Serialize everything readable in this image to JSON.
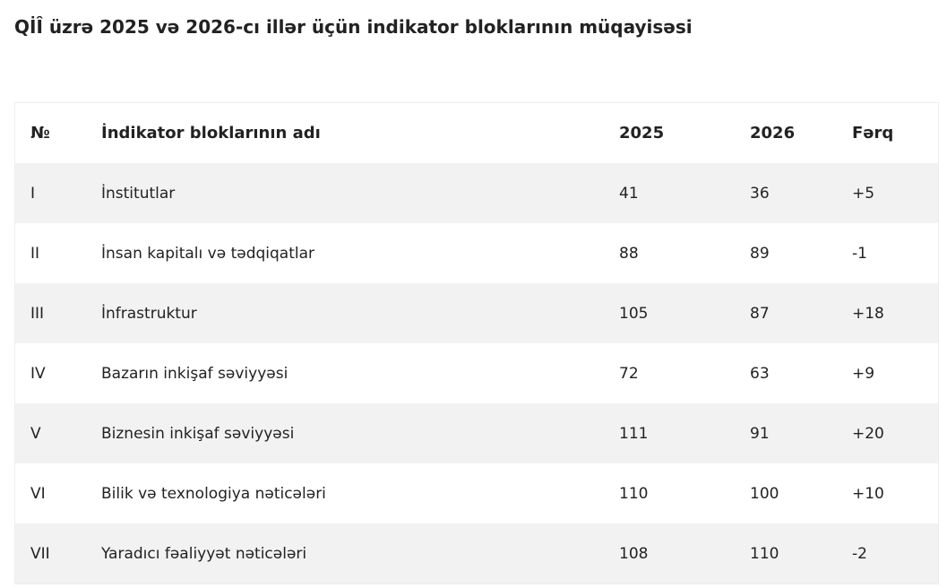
{
  "header": {
    "title": "QİÎ üzrə 2025 və 2026-cı illər üçün indikator bloklarının müqayisəsi"
  },
  "table": {
    "columns": [
      "№",
      "İndikator bloklarının adı",
      "2025",
      "2026",
      "Fərq"
    ],
    "rows": [
      [
        "I",
        "İnstitutlar",
        "41",
        "36",
        "+5"
      ],
      [
        "II",
        "İnsan kapitalı və tədqiqatlar",
        "88",
        "89",
        "-1"
      ],
      [
        "III",
        "İnfrastruktur",
        "105",
        "87",
        "+18"
      ],
      [
        "IV",
        "Bazarın inkişaf səviyyəsi",
        "72",
        "63",
        "+9"
      ],
      [
        "V",
        "Biznesin inkişaf səviyyəsi",
        "111",
        "91",
        "+20"
      ],
      [
        "VI",
        "Bilik və texnologiya nəticələri",
        "110",
        "100",
        "+10"
      ],
      [
        "VII",
        "Yaradıcı fəaliyyət nəticələri",
        "108",
        "110",
        "-2"
      ]
    ]
  }
}
